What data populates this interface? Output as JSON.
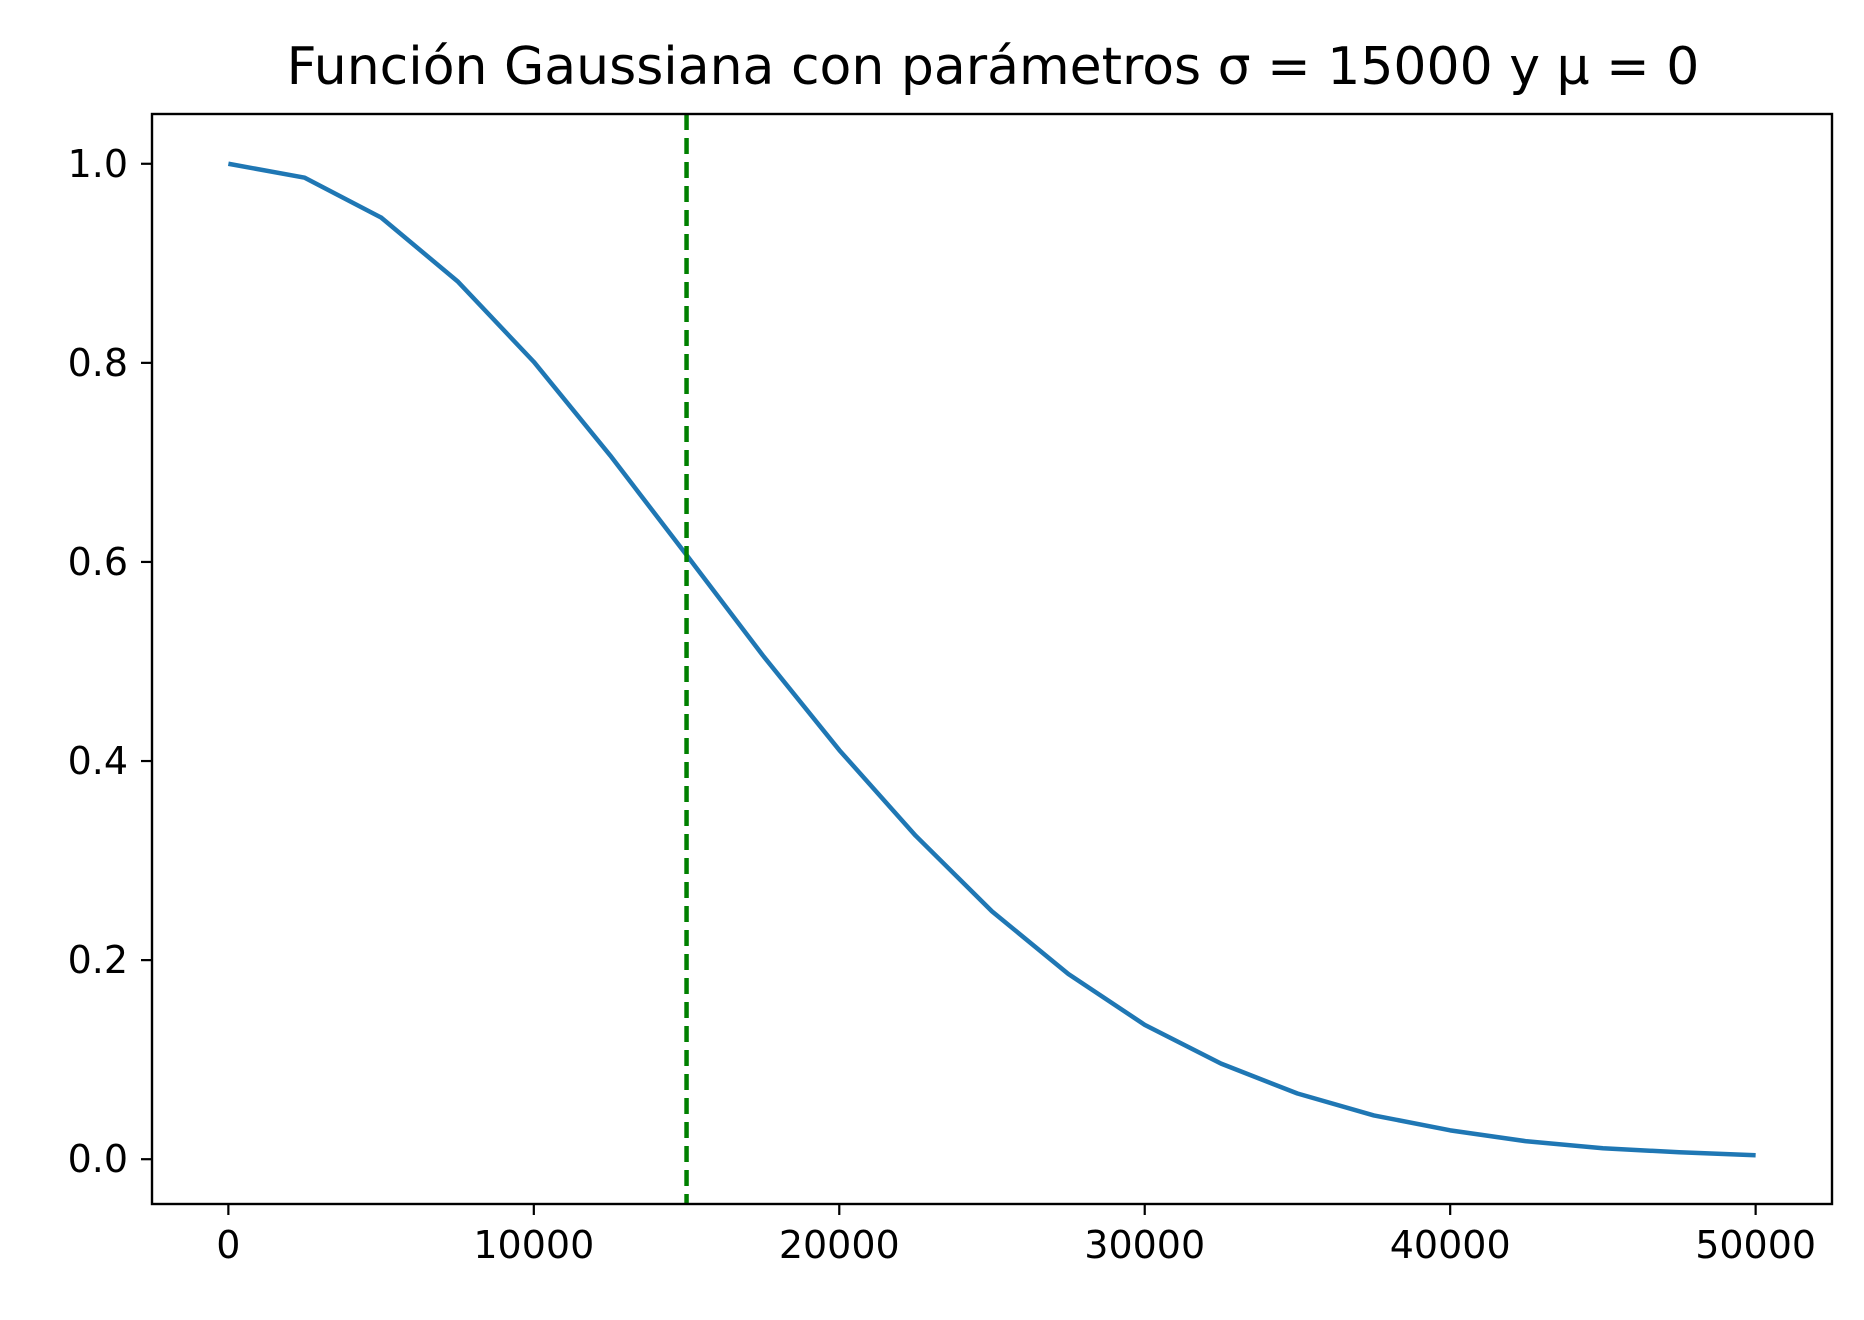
{
  "chart_data": {
    "type": "line",
    "title": "Función Gaussiana con parámetros σ = 15000 y μ = 0",
    "xlabel": "",
    "ylabel": "",
    "xlim": [
      -2500,
      52500
    ],
    "ylim": [
      -0.045,
      1.05
    ],
    "xticks": [
      0,
      10000,
      20000,
      30000,
      40000,
      50000
    ],
    "xtick_labels": [
      "0",
      "10000",
      "20000",
      "30000",
      "40000",
      "50000"
    ],
    "yticks": [
      0.0,
      0.2,
      0.4,
      0.6,
      0.8,
      1.0
    ],
    "ytick_labels": [
      "0.0",
      "0.2",
      "0.4",
      "0.6",
      "0.8",
      "1.0"
    ],
    "grid": false,
    "series": [
      {
        "color": "#1f77b4",
        "x": [
          0,
          2500,
          5000,
          7500,
          10000,
          12500,
          15000,
          17500,
          20000,
          22500,
          25000,
          27500,
          30000,
          32500,
          35000,
          37500,
          40000,
          42500,
          45000,
          47500,
          50000
        ],
        "y": [
          1.0,
          0.986,
          0.946,
          0.882,
          0.801,
          0.707,
          0.607,
          0.506,
          0.411,
          0.325,
          0.249,
          0.186,
          0.135,
          0.096,
          0.066,
          0.044,
          0.029,
          0.018,
          0.011,
          0.007,
          0.004
        ]
      }
    ],
    "vline": {
      "x": 15000,
      "color": "#008000",
      "style": "dashed"
    }
  }
}
